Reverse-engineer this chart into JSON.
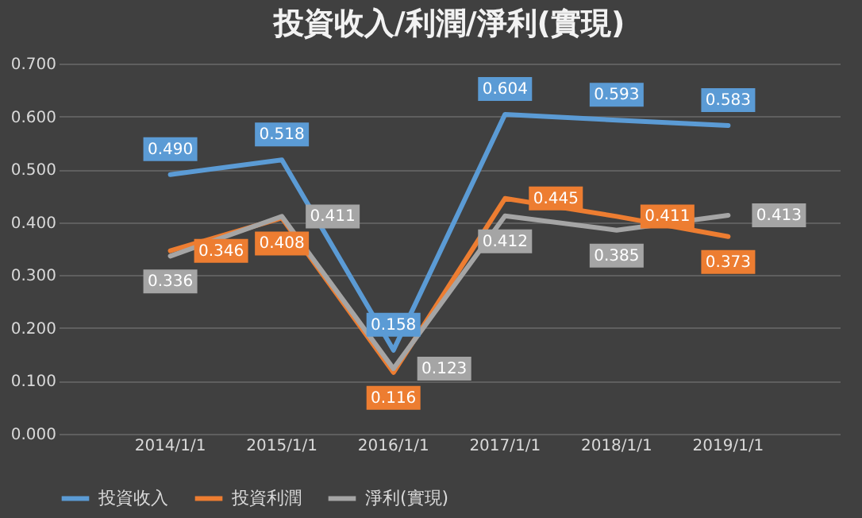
{
  "chart_data": {
    "type": "line",
    "title": "投資收入/利潤/淨利(實現)",
    "categories": [
      "2014/1/1",
      "2015/1/1",
      "2016/1/1",
      "2017/1/1",
      "2018/1/1",
      "2019/1/1"
    ],
    "series": [
      {
        "name": "投資收入",
        "color": "#5b9bd5",
        "values": [
          0.49,
          0.518,
          0.158,
          0.604,
          0.593,
          0.583
        ],
        "value_labels": [
          "0.490",
          "0.518",
          "0.158",
          "0.604",
          "0.593",
          "0.583"
        ]
      },
      {
        "name": "投資利潤",
        "color": "#ed7d31",
        "values": [
          0.346,
          0.408,
          0.116,
          0.445,
          0.411,
          0.373
        ],
        "value_labels": [
          "0.346",
          "0.408",
          "0.116",
          "0.445",
          "0.411",
          "0.373"
        ]
      },
      {
        "name": "淨利(實現)",
        "color": "#a5a5a5",
        "values": [
          0.336,
          0.411,
          0.123,
          0.412,
          0.385,
          0.413
        ],
        "value_labels": [
          "0.336",
          "0.411",
          "0.123",
          "0.412",
          "0.385",
          "0.413"
        ]
      }
    ],
    "ylim": [
      0,
      0.7
    ],
    "yticks": [
      {
        "value": 0,
        "label": "0.000"
      },
      {
        "value": 0.1,
        "label": "0.100"
      },
      {
        "value": 0.2,
        "label": "0.200"
      },
      {
        "value": 0.3,
        "label": "0.300"
      },
      {
        "value": 0.4,
        "label": "0.400"
      },
      {
        "value": 0.5,
        "label": "0.500"
      },
      {
        "value": 0.6,
        "label": "0.600"
      },
      {
        "value": 0.7,
        "label": "0.700"
      }
    ],
    "grid": "y",
    "legend": "bottom",
    "marker": "none",
    "line_style": "solid"
  }
}
